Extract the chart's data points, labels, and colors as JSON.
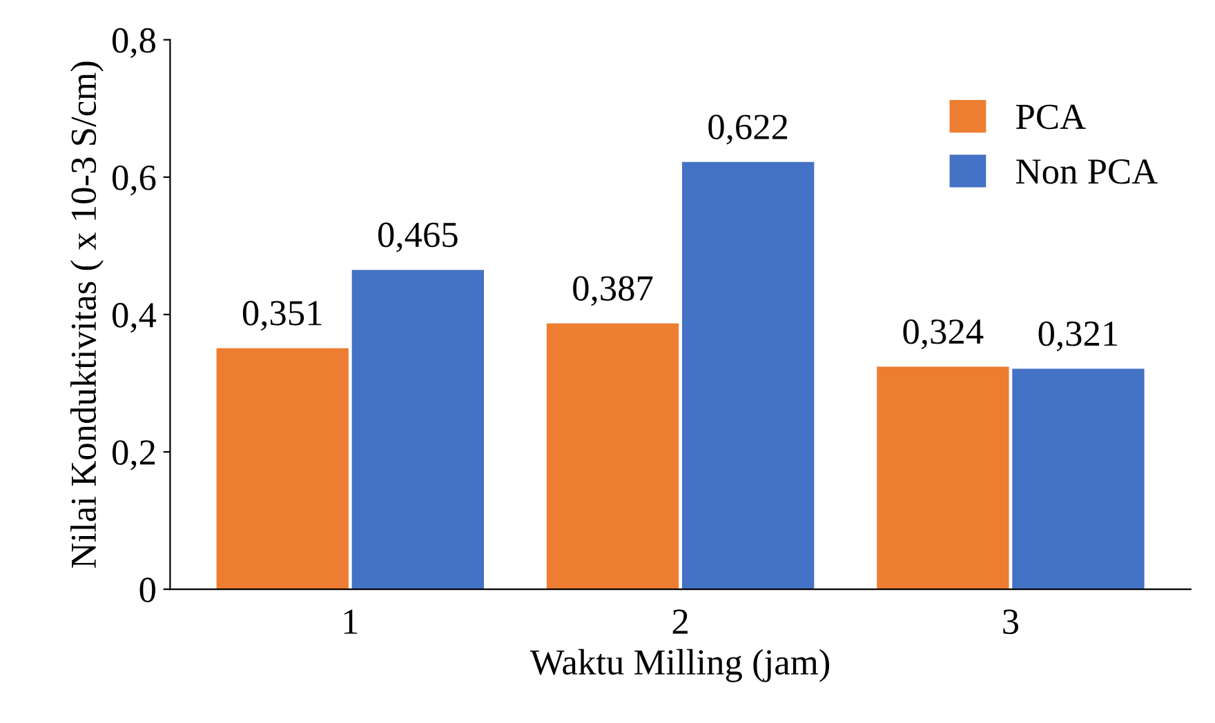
{
  "chart_data": {
    "type": "bar",
    "xlabel": "Waktu Milling (jam)",
    "ylabel": "Nilai Konduktivitas ( x 10-3 S/cm)",
    "categories": [
      "1",
      "2",
      "3"
    ],
    "series": [
      {
        "name": "PCA",
        "color": "#ed7d31",
        "values": [
          0.351,
          0.387,
          0.324
        ],
        "value_labels": [
          "0,351",
          "0,387",
          "0,324"
        ]
      },
      {
        "name": "Non PCA",
        "color": "#4472c4",
        "values": [
          0.465,
          0.622,
          0.321
        ],
        "value_labels": [
          "0,465",
          "0,622",
          "0,321"
        ]
      }
    ],
    "ylim": [
      0,
      0.8
    ],
    "yticks": [
      0,
      {
        "value": 0.2,
        "label": "0,2"
      },
      {
        "value": 0.4,
        "label": "0,4"
      },
      {
        "value": 0.6,
        "label": "0,6"
      },
      {
        "value": 0.8,
        "label": "0,8"
      }
    ],
    "grid": false,
    "legend": "top right"
  }
}
